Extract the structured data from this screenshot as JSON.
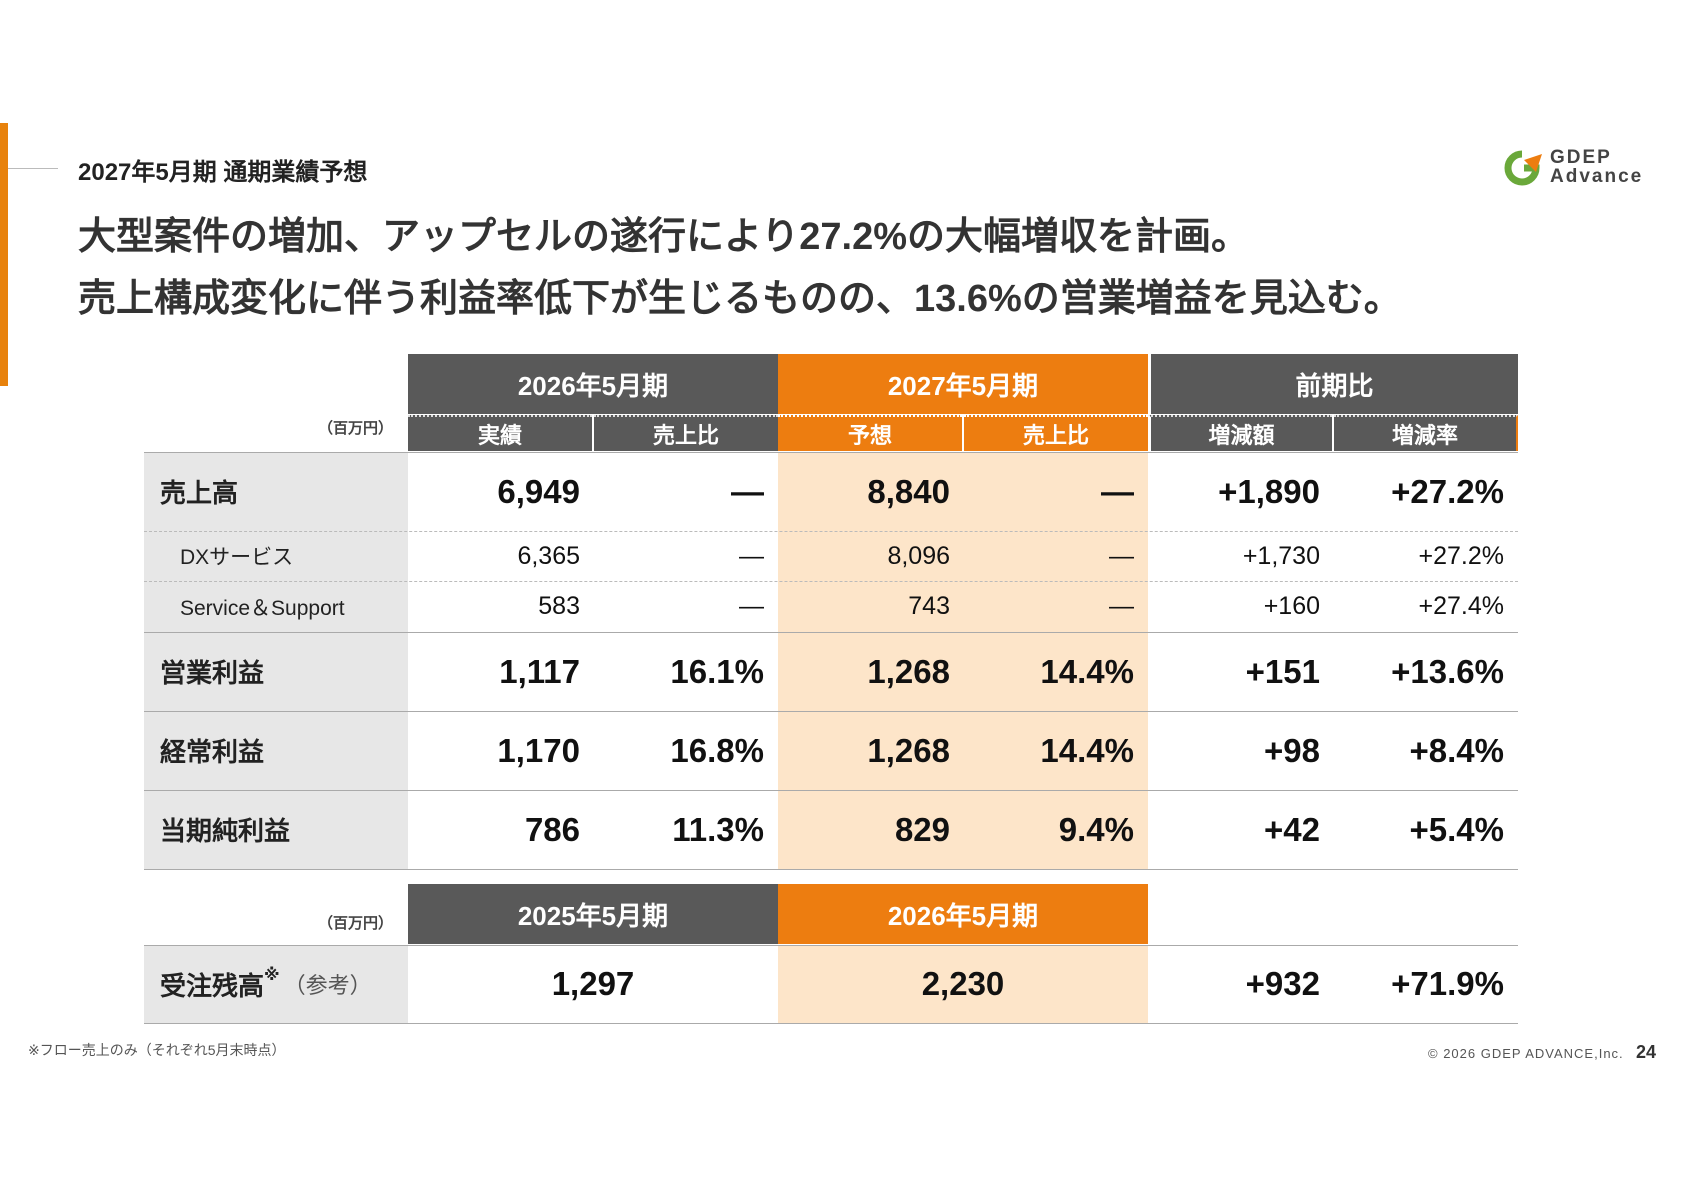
{
  "colors": {
    "accent": "#ed7d10",
    "header_dark": "#595959",
    "highlight": "#fde5c9",
    "label_bg": "#e7e7e7"
  },
  "header": {
    "section_title": "2027年5月期 通期業績予想",
    "headline_line1": "大型案件の増加、アップセルの遂行により27.2%の大幅増収を計画。",
    "headline_line2": "売上構成変化に伴う利益率低下が生じるものの、13.6%の営業増益を見込む。"
  },
  "logo": {
    "icon": "gdep-logo-icon",
    "line1": "GDEP",
    "line2": "Advance"
  },
  "table": {
    "unit": "（百万円）",
    "groups": [
      "2026年5月期",
      "2027年5月期",
      "前期比"
    ],
    "subheaders": [
      "実績",
      "売上比",
      "予想",
      "売上比",
      "増減額",
      "増減率"
    ],
    "rows": [
      {
        "label": "売上高",
        "cells": [
          "6,949",
          "—",
          "8,840",
          "—",
          "+1,890",
          "+27.2%"
        ]
      },
      {
        "label": "DXサービス",
        "cells": [
          "6,365",
          "—",
          "8,096",
          "—",
          "+1,730",
          "+27.2%"
        ]
      },
      {
        "label": "Service＆Support",
        "cells": [
          "583",
          "—",
          "743",
          "—",
          "+160",
          "+27.4%"
        ]
      },
      {
        "label": "営業利益",
        "cells": [
          "1,117",
          "16.1%",
          "1,268",
          "14.4%",
          "+151",
          "+13.6%"
        ]
      },
      {
        "label": "経常利益",
        "cells": [
          "1,170",
          "16.8%",
          "1,268",
          "14.4%",
          "+98",
          "+8.4%"
        ]
      },
      {
        "label": "当期純利益",
        "cells": [
          "786",
          "11.3%",
          "829",
          "9.4%",
          "+42",
          "+5.4%"
        ]
      }
    ]
  },
  "backlog": {
    "unit": "（百万円）",
    "headers": [
      "2025年5月期",
      "2026年5月期"
    ],
    "label": "受注残高",
    "label_mark": "※",
    "label_note": "（参考）",
    "cells": [
      "1,297",
      "2,230",
      "+932",
      "+71.9%"
    ]
  },
  "footer": {
    "footnote": "※フロー売上のみ（それぞれ5月末時点）",
    "copyright": "© 2026 GDEP ADVANCE,Inc.",
    "page": "24"
  }
}
